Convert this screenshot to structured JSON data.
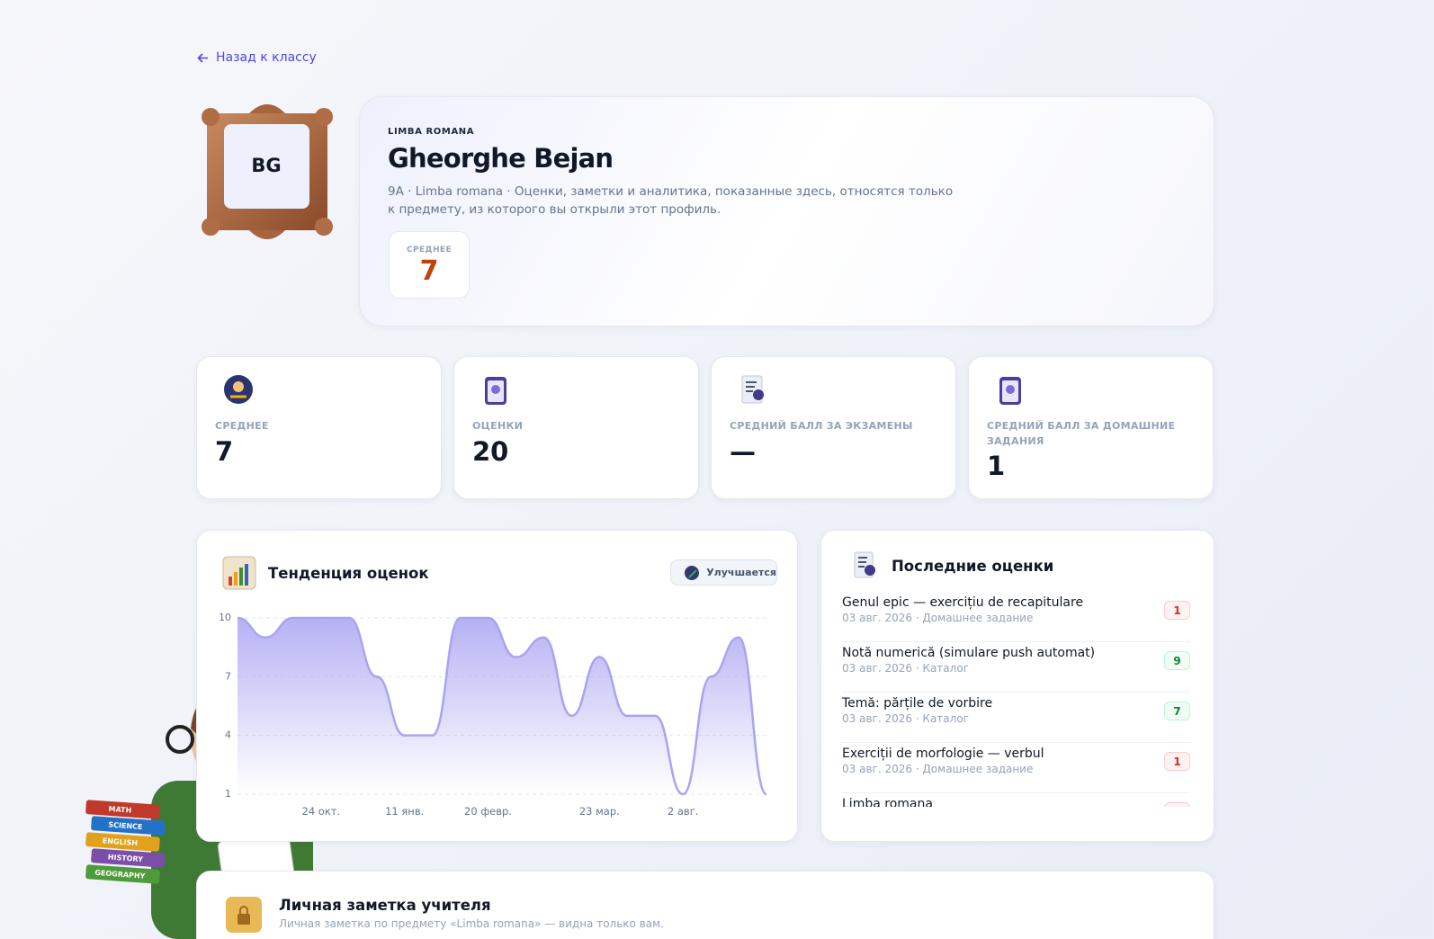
{
  "nav": {
    "back": "Назад к классу"
  },
  "avatar": {
    "initials": "BG"
  },
  "header": {
    "subject": "LIMBA ROMANA",
    "name": "Gheorghe Bejan",
    "description": "9A · Limba romana · Оценки, заметки и аналитика, показанные здесь, относятся только к предмету, из которого вы открыли этот профиль.",
    "average_label": "СРЕДНЕЕ",
    "average": 7
  },
  "stats": [
    {
      "label": "СРЕДНЕЕ",
      "value": 7
    },
    {
      "label": "ОЦЕНКИ",
      "value": 20
    },
    {
      "label": "СРЕДНИЙ БАЛЛ ЗА ЭКЗАМЕНЫ",
      "value": "—"
    },
    {
      "label": "СРЕДНИЙ БАЛЛ ЗА ДОМАШНИЕ ЗАДАНИЯ",
      "value": 1
    }
  ],
  "trend": {
    "title": "Тенденция оценок",
    "badge": "Улучшается",
    "chart_data": {
      "type": "area",
      "categories": [
        null,
        null,
        null,
        "24 окт.",
        null,
        null,
        "11 янв.",
        null,
        null,
        "20 февр.",
        null,
        null,
        null,
        "23 мар.",
        null,
        null,
        "2 авг.",
        null,
        null,
        null
      ],
      "values": [
        10,
        9,
        10,
        10,
        10,
        7,
        4,
        4,
        10,
        10,
        8,
        9,
        5,
        8,
        5,
        5,
        1,
        7,
        9,
        1
      ],
      "color": "#a9a4f2",
      "ylim": [
        1,
        10
      ],
      "yticks": [
        1,
        4,
        7,
        10
      ],
      "grid": true
    }
  },
  "recent": {
    "title": "Последние оценки",
    "items": [
      {
        "title": "Genul epic — exercițiu de recapitulare",
        "meta": "03 авг. 2026 · Домашнее задание",
        "grade": 1
      },
      {
        "title": "Notă numerică (simulare push automat)",
        "meta": "03 авг. 2026 · Каталог",
        "grade": 9
      },
      {
        "title": "Temă: părțile de vorbire",
        "meta": "03 авг. 2026 · Каталог",
        "grade": 7
      },
      {
        "title": "Exerciții de morfologie — verbul",
        "meta": "03 авг. 2026 · Домашнее задание",
        "grade": 1
      },
      {
        "title": "Limba romana"
      }
    ]
  },
  "note": {
    "title": "Личная заметка учителя",
    "subtitle": "Личная заметка по предмету «Limba romana» — видна только вам."
  },
  "illustration": {
    "books": [
      "MATH",
      "SCIENCE",
      "ENGLISH",
      "HISTORY",
      "GEOGRAPHY"
    ]
  }
}
